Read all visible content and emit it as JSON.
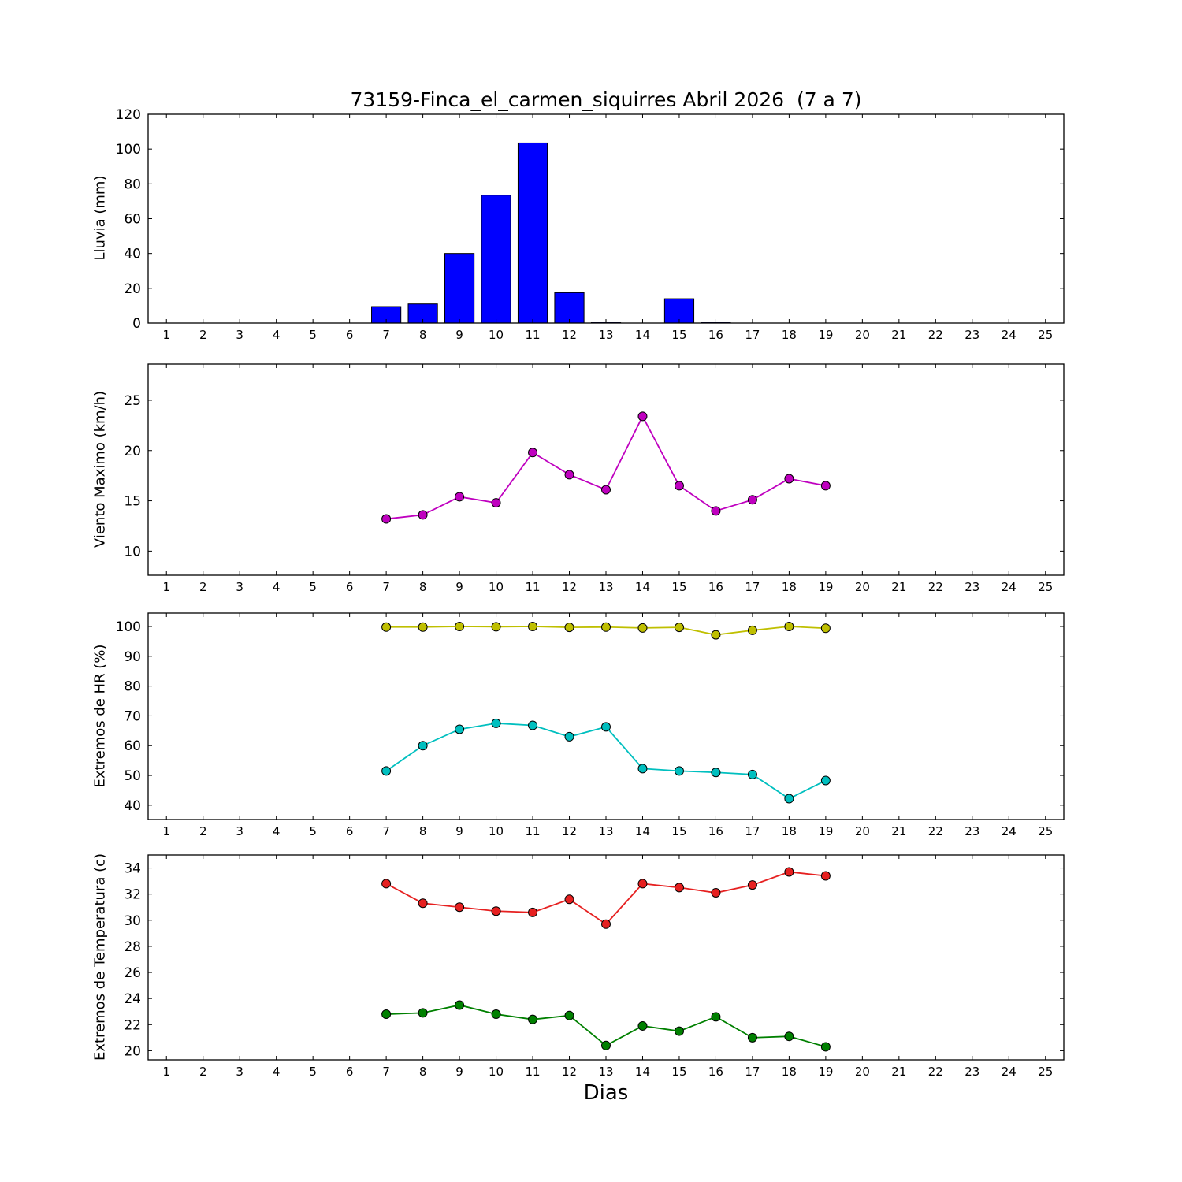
{
  "chart_data": [
    {
      "type": "bar",
      "title": "73159-Finca_el_carmen_siquirres Abril 2026  (7 a 7)",
      "ylabel": "Lluvia (mm)",
      "xlim": [
        0.5,
        25.5
      ],
      "ylim": [
        0,
        120
      ],
      "xticks": [
        1,
        2,
        3,
        4,
        5,
        6,
        7,
        8,
        9,
        10,
        11,
        12,
        13,
        14,
        15,
        16,
        17,
        18,
        19,
        20,
        21,
        22,
        23,
        24,
        25
      ],
      "yticks": [
        0,
        20,
        40,
        60,
        80,
        100,
        120
      ],
      "x": [
        7,
        8,
        9,
        10,
        11,
        12,
        13,
        14,
        15,
        16
      ],
      "values": [
        9.5,
        11,
        40,
        73.5,
        103.5,
        17.5,
        0.5,
        0,
        14,
        0.5
      ],
      "color": "#0000ff",
      "bar_width": 0.8,
      "grid": false,
      "legend": "none"
    },
    {
      "type": "line",
      "ylabel": "Viento Maximo (km/h)",
      "xlim": [
        0.5,
        25.5
      ],
      "ylim": [
        7.6,
        28.6
      ],
      "xticks": [
        1,
        2,
        3,
        4,
        5,
        6,
        7,
        8,
        9,
        10,
        11,
        12,
        13,
        14,
        15,
        16,
        17,
        18,
        19,
        20,
        21,
        22,
        23,
        24,
        25
      ],
      "yticks": [
        10,
        15,
        20,
        25
      ],
      "x": [
        7,
        8,
        9,
        10,
        11,
        12,
        13,
        14,
        15,
        16,
        17,
        18,
        19
      ],
      "series": [
        {
          "name": "viento-maximo",
          "color": "#bf00bf",
          "values": [
            13.2,
            13.6,
            15.4,
            14.8,
            19.8,
            17.6,
            16.1,
            23.4,
            16.5,
            14.0,
            15.1,
            17.2,
            16.5
          ]
        }
      ],
      "grid": false,
      "legend": "none"
    },
    {
      "type": "line",
      "ylabel": "Extremos de HR (%)",
      "xlim": [
        0.5,
        25.5
      ],
      "ylim": [
        35.2,
        104.5
      ],
      "xticks": [
        1,
        2,
        3,
        4,
        5,
        6,
        7,
        8,
        9,
        10,
        11,
        12,
        13,
        14,
        15,
        16,
        17,
        18,
        19,
        20,
        21,
        22,
        23,
        24,
        25
      ],
      "yticks": [
        40,
        50,
        60,
        70,
        80,
        90,
        100
      ],
      "x": [
        7,
        8,
        9,
        10,
        11,
        12,
        13,
        14,
        15,
        16,
        17,
        18,
        19
      ],
      "series": [
        {
          "name": "hr-maxima",
          "color": "#bfbf00",
          "values": [
            99.8,
            99.8,
            100,
            99.9,
            100,
            99.7,
            99.8,
            99.5,
            99.7,
            97.2,
            98.7,
            100,
            99.4
          ]
        },
        {
          "name": "hr-minima",
          "color": "#00bfbf",
          "values": [
            51.5,
            60.0,
            65.5,
            67.5,
            66.8,
            63.0,
            66.3,
            52.3,
            51.5,
            51.0,
            50.3,
            42.2,
            48.3
          ]
        }
      ],
      "grid": false,
      "legend": "none"
    },
    {
      "type": "line",
      "ylabel": "Extremos de Temperatura (c)",
      "xlabel": "Dias",
      "xlim": [
        0.5,
        25.5
      ],
      "ylim": [
        19.3,
        35.0
      ],
      "xticks": [
        1,
        2,
        3,
        4,
        5,
        6,
        7,
        8,
        9,
        10,
        11,
        12,
        13,
        14,
        15,
        16,
        17,
        18,
        19,
        20,
        21,
        22,
        23,
        24,
        25
      ],
      "yticks": [
        20,
        22,
        24,
        26,
        28,
        30,
        32,
        34
      ],
      "x": [
        7,
        8,
        9,
        10,
        11,
        12,
        13,
        14,
        15,
        16,
        17,
        18,
        19
      ],
      "series": [
        {
          "name": "temperatura-maxima",
          "color": "#e62020",
          "values": [
            32.8,
            31.3,
            31.0,
            30.7,
            30.6,
            31.6,
            29.7,
            32.8,
            32.5,
            32.1,
            32.7,
            33.7,
            33.4
          ]
        },
        {
          "name": "temperatura-minima",
          "color": "#008000",
          "values": [
            22.8,
            22.9,
            23.5,
            22.8,
            22.4,
            22.7,
            20.4,
            21.9,
            21.5,
            22.6,
            21.0,
            21.1,
            20.3
          ]
        }
      ],
      "grid": false,
      "legend": "none"
    }
  ]
}
